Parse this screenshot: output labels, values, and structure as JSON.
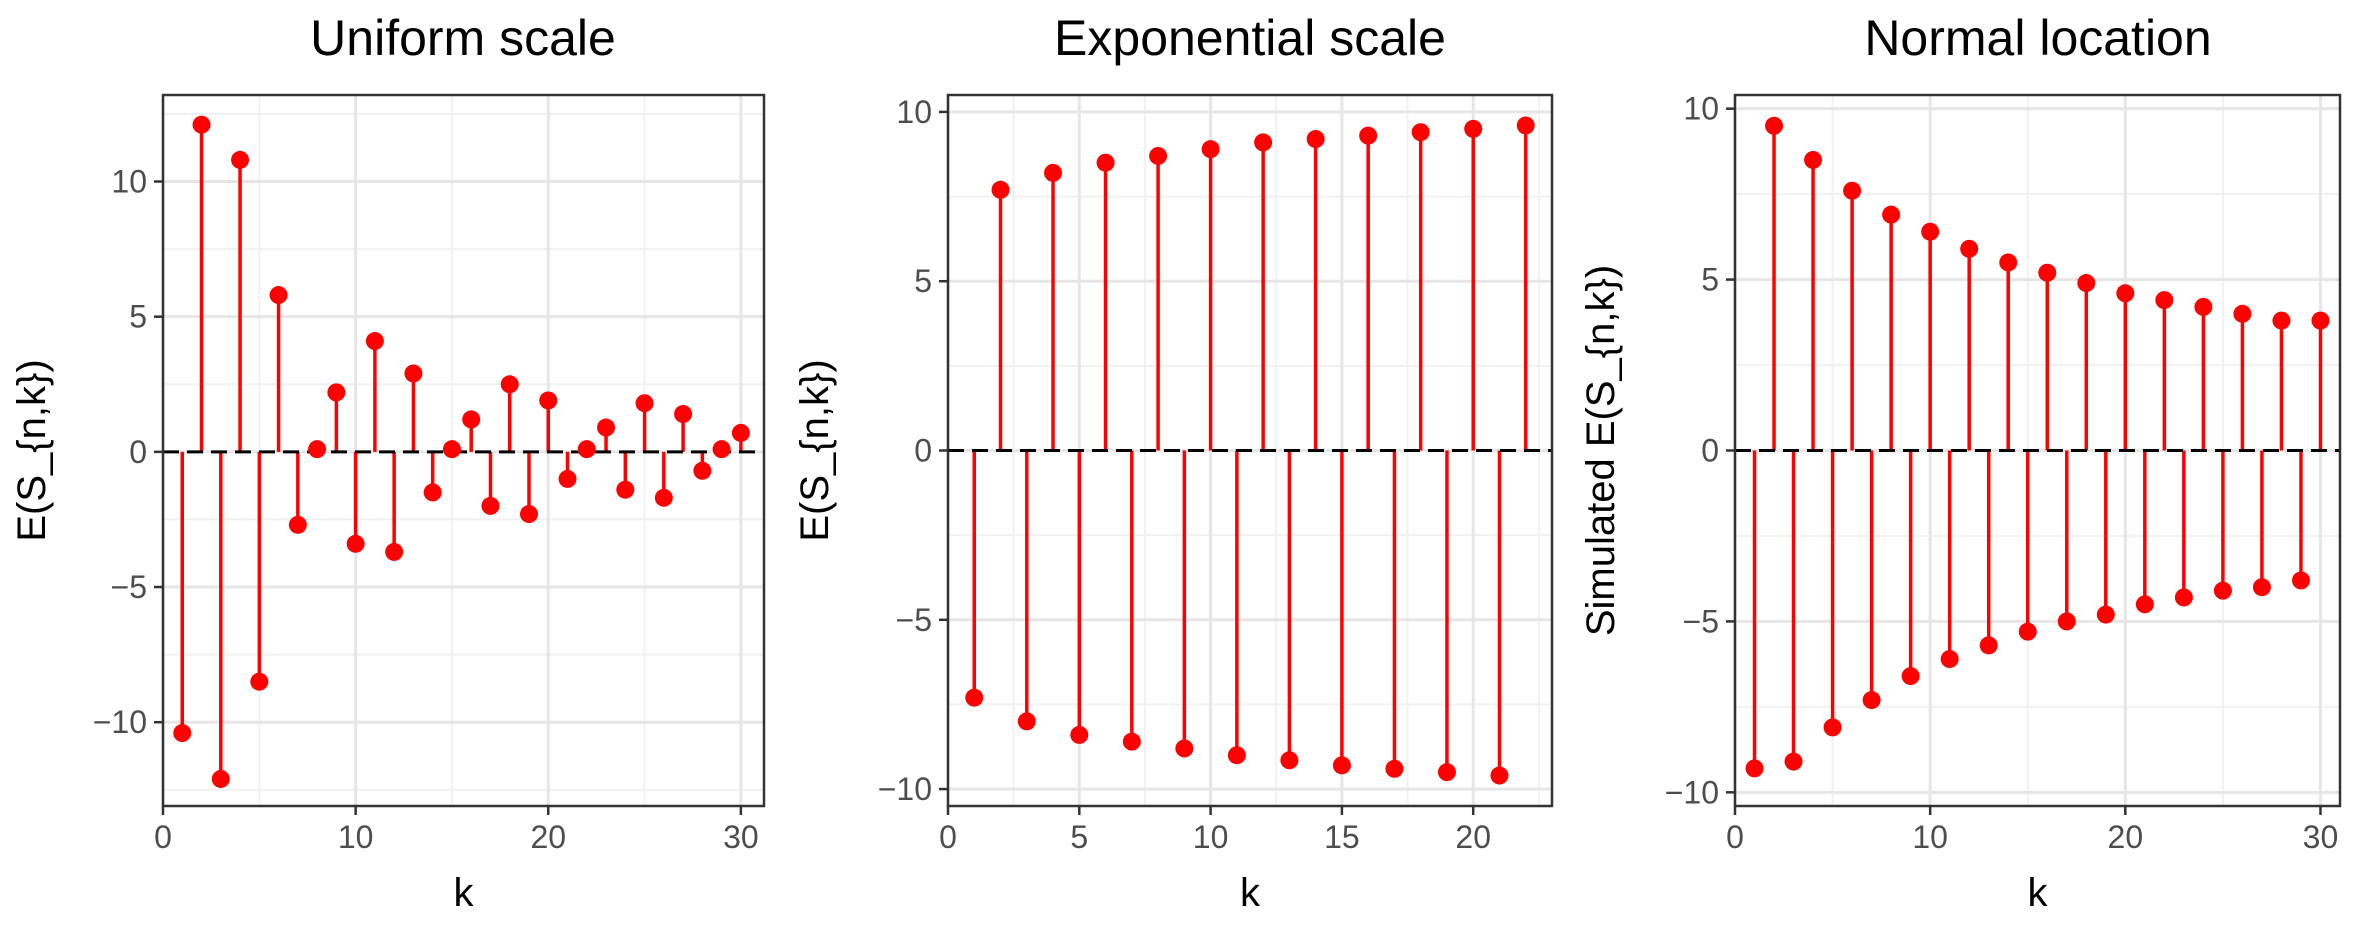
{
  "chart_data": [
    {
      "type": "stem",
      "title": "Uniform scale",
      "xlabel": "k",
      "ylabel": "E(S_{n,k})",
      "xlim": [
        0,
        31.2
      ],
      "ylim": [
        -13.1,
        13.2
      ],
      "xticks": [
        0,
        10,
        20,
        30
      ],
      "yticks": [
        -10,
        -5,
        0,
        5,
        10
      ],
      "xtick_labels": [
        "0",
        "10",
        "20",
        "30"
      ],
      "ytick_labels": [
        "−10",
        "−5",
        "0",
        "5",
        "10"
      ],
      "grid": true,
      "reference_line": 0,
      "color": "#ff0000",
      "x": [
        1,
        2,
        3,
        4,
        5,
        6,
        7,
        8,
        9,
        10,
        11,
        12,
        13,
        14,
        15,
        16,
        17,
        18,
        19,
        20,
        21,
        22,
        23,
        24,
        25,
        26,
        27,
        28,
        29,
        30
      ],
      "y": [
        -10.4,
        12.1,
        -12.1,
        10.8,
        -8.5,
        5.8,
        -2.7,
        0.1,
        2.2,
        -3.4,
        4.1,
        -3.7,
        2.9,
        -1.5,
        0.1,
        1.2,
        -2.0,
        2.5,
        -2.3,
        1.9,
        -1.0,
        0.1,
        0.9,
        -1.4,
        1.8,
        -1.7,
        1.4,
        -0.7,
        0.1,
        0.7
      ]
    },
    {
      "type": "stem",
      "title": "Exponential scale",
      "xlabel": "k",
      "ylabel": "E(S_{n,k})",
      "xlim": [
        0,
        23
      ],
      "ylim": [
        -10.5,
        10.5
      ],
      "xticks": [
        0,
        5,
        10,
        15,
        20
      ],
      "yticks": [
        -10,
        -5,
        0,
        5,
        10
      ],
      "xtick_labels": [
        "0",
        "5",
        "10",
        "15",
        "20"
      ],
      "ytick_labels": [
        "−10",
        "−5",
        "0",
        "5",
        "10"
      ],
      "grid": true,
      "reference_line": 0,
      "color": "#ff0000",
      "x": [
        1,
        2,
        3,
        4,
        5,
        6,
        7,
        8,
        9,
        10,
        11,
        12,
        13,
        14,
        15,
        16,
        17,
        18,
        19,
        20,
        21,
        22
      ],
      "y": [
        -7.3,
        7.7,
        -8.0,
        8.2,
        -8.4,
        8.5,
        -8.6,
        8.7,
        -8.8,
        8.9,
        -9.0,
        9.1,
        -9.15,
        9.2,
        -9.3,
        9.3,
        -9.4,
        9.4,
        -9.5,
        9.5,
        -9.6,
        9.6
      ]
    },
    {
      "type": "stem",
      "title": "Normal location",
      "xlabel": "k",
      "ylabel": "Simulated E(S_{n,k})",
      "xlim": [
        0,
        31
      ],
      "ylim": [
        -10.4,
        10.4
      ],
      "xticks": [
        0,
        10,
        20,
        30
      ],
      "yticks": [
        -10,
        -5,
        0,
        5,
        10
      ],
      "xtick_labels": [
        "0",
        "10",
        "20",
        "30"
      ],
      "ytick_labels": [
        "−10",
        "−5",
        "0",
        "5",
        "10"
      ],
      "grid": true,
      "reference_line": 0,
      "color": "#ff0000",
      "x": [
        1,
        2,
        3,
        4,
        5,
        6,
        7,
        8,
        9,
        10,
        11,
        12,
        13,
        14,
        15,
        16,
        17,
        18,
        19,
        20,
        21,
        22,
        23,
        24,
        25,
        26,
        27,
        28,
        29,
        30
      ],
      "y": [
        -9.3,
        9.5,
        -9.1,
        8.5,
        -8.1,
        7.6,
        -7.3,
        6.9,
        -6.6,
        6.4,
        -6.1,
        5.9,
        -5.7,
        5.5,
        -5.3,
        5.2,
        -5.0,
        4.9,
        -4.8,
        4.6,
        -4.5,
        4.4,
        -4.3,
        4.2,
        -4.1,
        4.0,
        -4.0,
        3.8,
        -3.8,
        3.8
      ]
    }
  ]
}
